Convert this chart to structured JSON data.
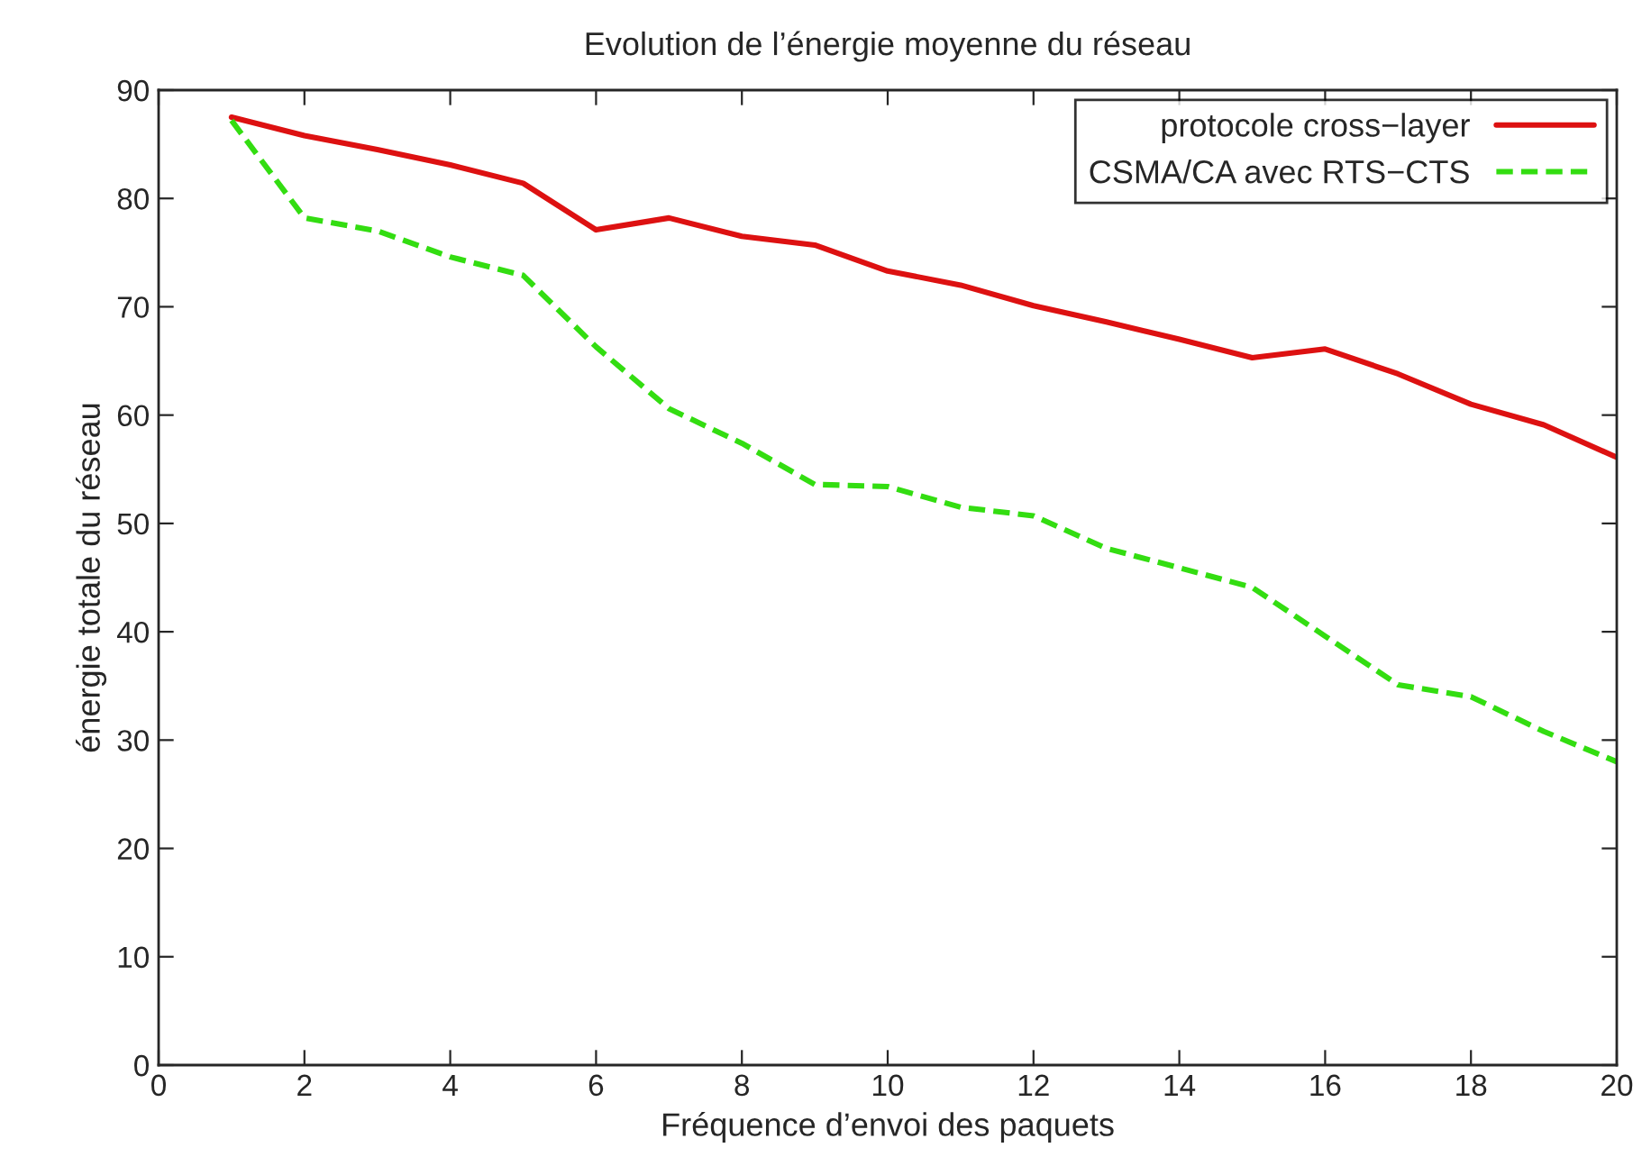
{
  "chart_data": {
    "type": "line",
    "title": "Evolution de l’énergie moyenne du réseau",
    "xlabel": "Fréquence d’envoi des paquets",
    "ylabel": "énergie totale du réseau",
    "x": [
      1,
      2,
      3,
      4,
      5,
      6,
      7,
      8,
      9,
      10,
      11,
      12,
      13,
      14,
      15,
      16,
      17,
      18,
      19,
      20
    ],
    "series": [
      {
        "name": "protocole cross−layer",
        "color": "#dd1111",
        "line_style": "solid",
        "values": [
          87.5,
          85.8,
          84.5,
          83.1,
          81.4,
          77.1,
          78.2,
          76.5,
          75.7,
          73.3,
          72.0,
          70.1,
          68.6,
          67.0,
          65.3,
          66.1,
          63.8,
          61.0,
          59.1,
          56.1
        ]
      },
      {
        "name": "CSMA/CA avec RTS−CTS",
        "color": "#33dd11",
        "line_style": "dashed",
        "values": [
          87.2,
          78.2,
          77.0,
          74.6,
          72.9,
          66.3,
          60.6,
          57.4,
          53.6,
          53.4,
          51.5,
          50.7,
          47.7,
          45.9,
          44.1,
          39.6,
          35.1,
          34.0,
          30.8,
          28.0
        ]
      }
    ],
    "xlim": [
      0,
      20
    ],
    "xticks": [
      0,
      2,
      4,
      6,
      8,
      10,
      12,
      14,
      16,
      18,
      20
    ],
    "ylim": [
      0,
      90
    ],
    "yticks": [
      0,
      10,
      20,
      30,
      40,
      50,
      60,
      70,
      80,
      90
    ],
    "grid": false,
    "legend": "top right",
    "marker": "none"
  }
}
